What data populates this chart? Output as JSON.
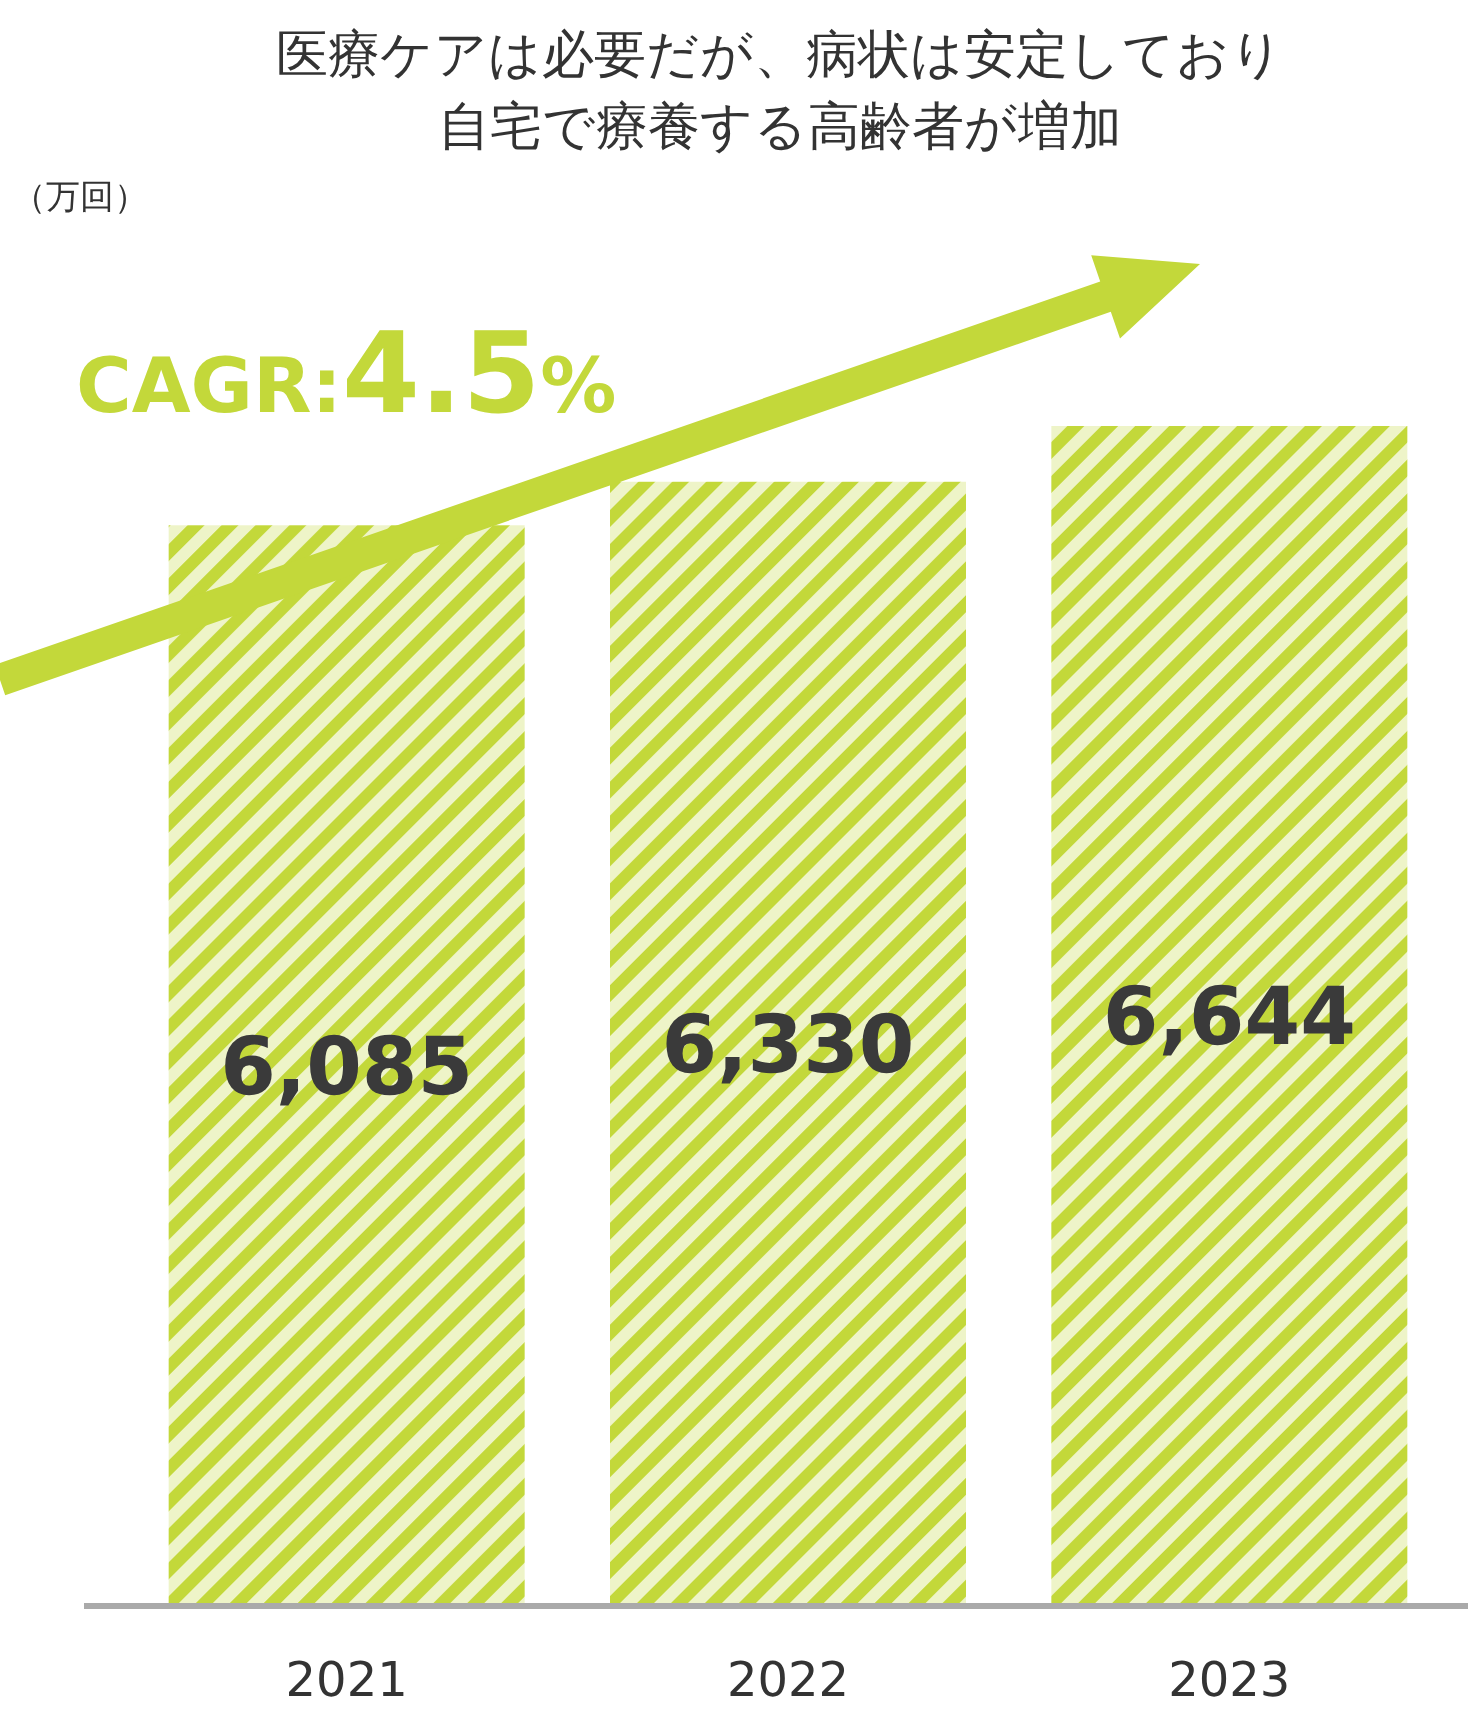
{
  "chart_data": {
    "type": "bar",
    "title": "医療ケアは必要だが、病状は安定しており",
    "subtitle": "自宅で療養する高齢者が増加",
    "categories": [
      "2021",
      "2022",
      "2023"
    ],
    "values": [
      6085,
      6330,
      6644
    ],
    "color": "#c3d83a",
    "value_labels": [
      "6,085",
      "6,330",
      "6,644"
    ],
    "annotations": [
      "（万回）",
      "CAGR:4.5%"
    ]
  }
}
